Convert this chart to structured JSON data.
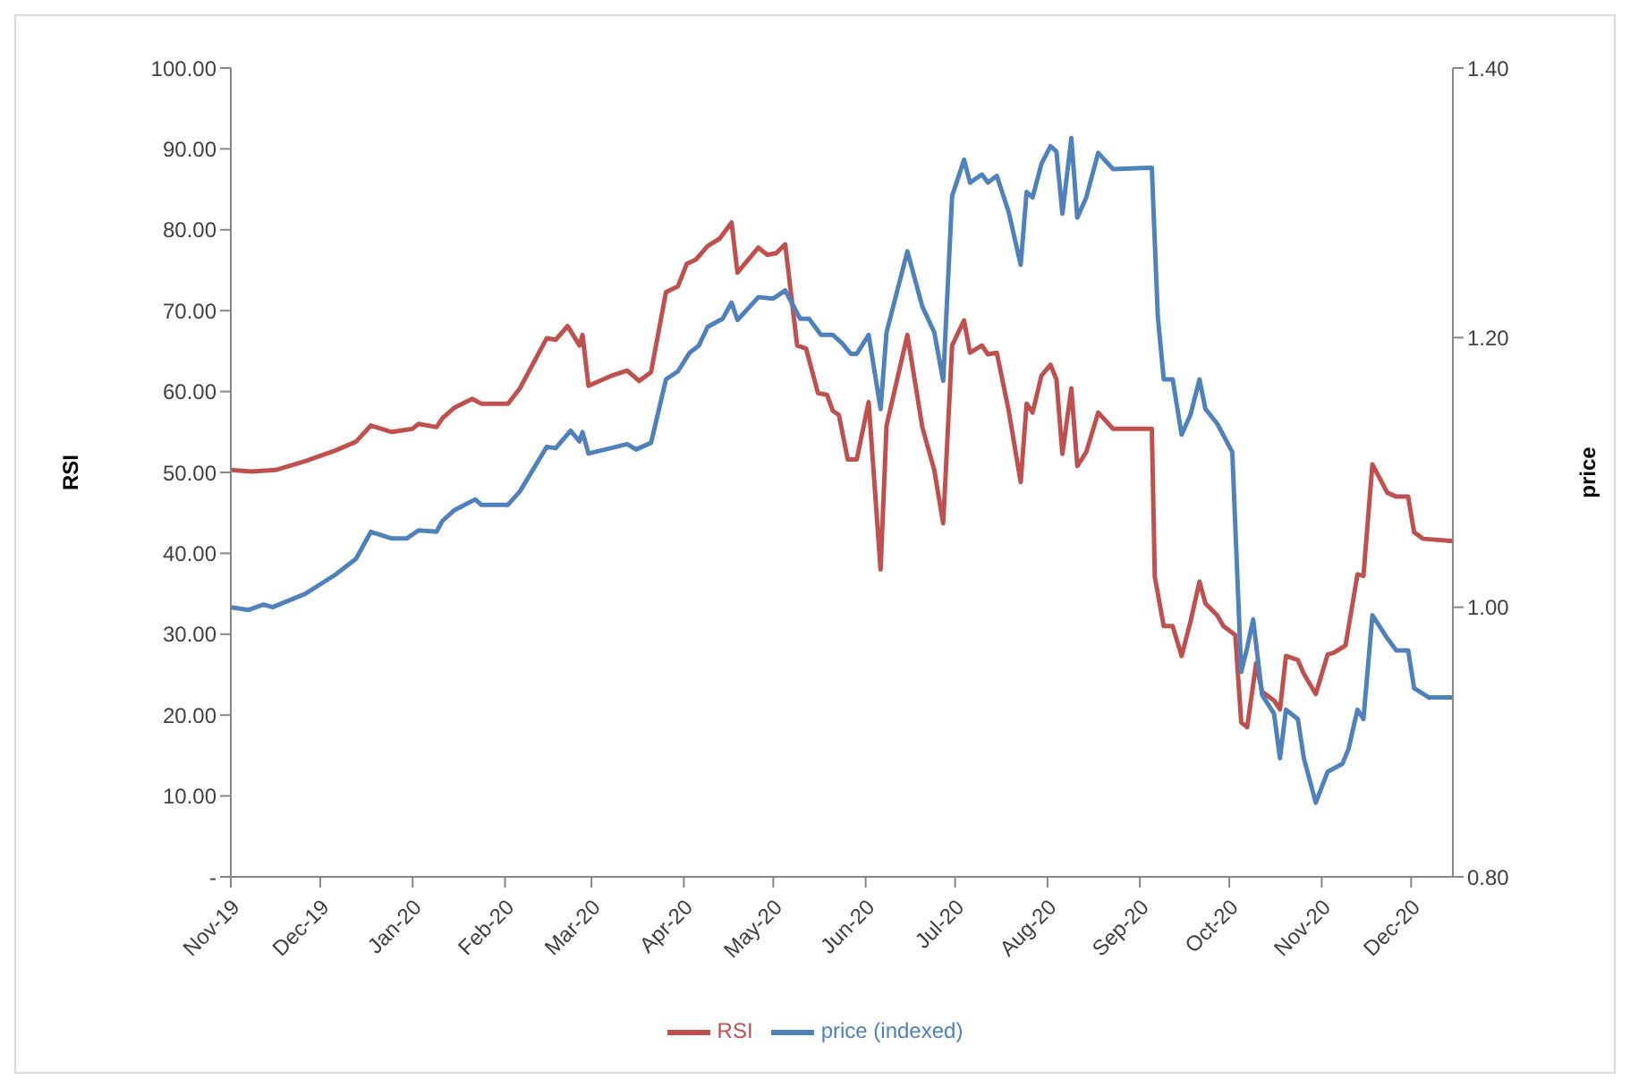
{
  "chart_data": {
    "type": "line",
    "ylabel": "RSI",
    "y2label": "price",
    "legend": "bottom",
    "marker": "none",
    "xlim": [
      "2019-11-01",
      "2020-12-15"
    ],
    "xticks": [
      {
        "value": "2019-11-01",
        "label": "Nov-19"
      },
      {
        "value": "2019-12-01",
        "label": "Dec-19"
      },
      {
        "value": "2020-01-01",
        "label": "Jan-20"
      },
      {
        "value": "2020-02-01",
        "label": "Feb-20"
      },
      {
        "value": "2020-03-01",
        "label": "Mar-20"
      },
      {
        "value": "2020-04-01",
        "label": "Apr-20"
      },
      {
        "value": "2020-05-01",
        "label": "May-20"
      },
      {
        "value": "2020-06-01",
        "label": "Jun-20"
      },
      {
        "value": "2020-07-01",
        "label": "Jul-20"
      },
      {
        "value": "2020-08-01",
        "label": "Aug-20"
      },
      {
        "value": "2020-09-01",
        "label": "Sep-20"
      },
      {
        "value": "2020-10-01",
        "label": "Oct-20"
      },
      {
        "value": "2020-11-01",
        "label": "Nov-20"
      },
      {
        "value": "2020-12-01",
        "label": "Dec-20"
      }
    ],
    "ylim": [
      0,
      100
    ],
    "yticks": [
      {
        "value": 0,
        "label": "-"
      },
      {
        "value": 10,
        "label": "10.00"
      },
      {
        "value": 20,
        "label": "20.00"
      },
      {
        "value": 30,
        "label": "30.00"
      },
      {
        "value": 40,
        "label": "40.00"
      },
      {
        "value": 50,
        "label": "50.00"
      },
      {
        "value": 60,
        "label": "60.00"
      },
      {
        "value": 70,
        "label": "70.00"
      },
      {
        "value": 80,
        "label": "80.00"
      },
      {
        "value": 90,
        "label": "90.00"
      },
      {
        "value": 100,
        "label": "100.00"
      }
    ],
    "y2lim": [
      0.8,
      1.4
    ],
    "y2ticks": [
      {
        "value": 0.8,
        "label": "0.80"
      },
      {
        "value": 1.0,
        "label": "1.00"
      },
      {
        "value": 1.2,
        "label": "1.20"
      },
      {
        "value": 1.4,
        "label": "1.40"
      }
    ],
    "series": [
      {
        "name": "RSI",
        "color": "#c0504d",
        "x": [
          "2019-11-01",
          "2019-11-08",
          "2019-11-16",
          "2019-11-26",
          "2019-12-06",
          "2019-12-13",
          "2019-12-18",
          "2019-12-25",
          "2020-01-01",
          "2020-01-03",
          "2020-01-09",
          "2020-01-11",
          "2020-01-15",
          "2020-01-21",
          "2020-01-24",
          "2020-02-02",
          "2020-02-06",
          "2020-02-15",
          "2020-02-18",
          "2020-02-22",
          "2020-02-26",
          "2020-02-27",
          "2020-02-29",
          "2020-03-08",
          "2020-03-13",
          "2020-03-17",
          "2020-03-21",
          "2020-03-26",
          "2020-03-30",
          "2020-04-02",
          "2020-04-05",
          "2020-04-09",
          "2020-04-13",
          "2020-04-17",
          "2020-04-19",
          "2020-04-26",
          "2020-04-29",
          "2020-05-02",
          "2020-05-05",
          "2020-05-09",
          "2020-05-12",
          "2020-05-16",
          "2020-05-19",
          "2020-05-21",
          "2020-05-23",
          "2020-05-26",
          "2020-05-29",
          "2020-06-02",
          "2020-06-06",
          "2020-06-08",
          "2020-06-15",
          "2020-06-20",
          "2020-06-24",
          "2020-06-27",
          "2020-06-30",
          "2020-07-04",
          "2020-07-06",
          "2020-07-10",
          "2020-07-12",
          "2020-07-15",
          "2020-07-19",
          "2020-07-23",
          "2020-07-25",
          "2020-07-27",
          "2020-07-30",
          "2020-08-02",
          "2020-08-04",
          "2020-08-06",
          "2020-08-09",
          "2020-08-11",
          "2020-08-14",
          "2020-08-18",
          "2020-08-23",
          "2020-09-05",
          "2020-09-06",
          "2020-09-09",
          "2020-09-12",
          "2020-09-15",
          "2020-09-18",
          "2020-09-21",
          "2020-09-23",
          "2020-09-27",
          "2020-09-29",
          "2020-10-03",
          "2020-10-05",
          "2020-10-07",
          "2020-10-10",
          "2020-10-12",
          "2020-10-16",
          "2020-10-18",
          "2020-10-20",
          "2020-10-24",
          "2020-10-26",
          "2020-10-30",
          "2020-11-03",
          "2020-11-05",
          "2020-11-09",
          "2020-11-13",
          "2020-11-15",
          "2020-11-18",
          "2020-11-23",
          "2020-11-26",
          "2020-11-30",
          "2020-12-02",
          "2020-12-05",
          "2020-12-15"
        ],
        "values": [
          50.3,
          50.1,
          50.3,
          51.4,
          52.7,
          53.8,
          55.8,
          55.0,
          55.4,
          56.0,
          55.6,
          56.7,
          58.0,
          59.1,
          58.5,
          58.5,
          60.4,
          66.6,
          66.4,
          68.1,
          65.7,
          67.0,
          60.7,
          62.0,
          62.6,
          61.3,
          62.4,
          72.3,
          73.0,
          75.8,
          76.3,
          78.0,
          78.9,
          80.9,
          74.7,
          77.8,
          76.9,
          77.1,
          78.2,
          65.7,
          65.3,
          59.8,
          59.6,
          57.6,
          57.1,
          51.6,
          51.6,
          58.7,
          38.0,
          55.8,
          67.0,
          55.6,
          50.3,
          43.7,
          65.7,
          68.8,
          64.8,
          65.7,
          64.6,
          64.8,
          57.6,
          48.8,
          58.5,
          57.4,
          62.0,
          63.3,
          61.5,
          52.3,
          60.4,
          50.8,
          52.5,
          57.4,
          55.4,
          55.4,
          37.1,
          31.0,
          31.0,
          27.3,
          31.6,
          36.5,
          33.8,
          32.3,
          31.0,
          29.9,
          19.1,
          18.5,
          26.4,
          22.9,
          21.8,
          20.7,
          27.3,
          26.8,
          25.1,
          22.6,
          27.5,
          27.7,
          28.6,
          37.4,
          37.2,
          51.0,
          47.5,
          47.0,
          47.0,
          42.6,
          41.8,
          41.5
        ]
      },
      {
        "name": "price (indexed)",
        "color": "#4f81bd",
        "axis": "y2",
        "x": [
          "2019-11-01",
          "2019-11-07",
          "2019-11-12",
          "2019-11-15",
          "2019-11-26",
          "2019-12-06",
          "2019-12-13",
          "2019-12-18",
          "2019-12-25",
          "2019-12-30",
          "2020-01-03",
          "2020-01-09",
          "2020-01-11",
          "2020-01-15",
          "2020-01-22",
          "2020-01-24",
          "2020-02-02",
          "2020-02-06",
          "2020-02-15",
          "2020-02-18",
          "2020-02-23",
          "2020-02-26",
          "2020-02-27",
          "2020-02-29",
          "2020-03-13",
          "2020-03-16",
          "2020-03-21",
          "2020-03-26",
          "2020-03-30",
          "2020-04-03",
          "2020-04-06",
          "2020-04-09",
          "2020-04-14",
          "2020-04-17",
          "2020-04-19",
          "2020-04-26",
          "2020-05-01",
          "2020-05-05",
          "2020-05-10",
          "2020-05-13",
          "2020-05-17",
          "2020-05-21",
          "2020-05-24",
          "2020-05-27",
          "2020-05-29",
          "2020-06-02",
          "2020-06-06",
          "2020-06-08",
          "2020-06-15",
          "2020-06-20",
          "2020-06-24",
          "2020-06-27",
          "2020-06-30",
          "2020-07-04",
          "2020-07-06",
          "2020-07-10",
          "2020-07-12",
          "2020-07-15",
          "2020-07-19",
          "2020-07-23",
          "2020-07-25",
          "2020-07-27",
          "2020-07-30",
          "2020-08-02",
          "2020-08-04",
          "2020-08-06",
          "2020-08-09",
          "2020-08-11",
          "2020-08-14",
          "2020-08-18",
          "2020-08-23",
          "2020-09-05",
          "2020-09-07",
          "2020-09-09",
          "2020-09-12",
          "2020-09-15",
          "2020-09-18",
          "2020-09-21",
          "2020-09-23",
          "2020-09-27",
          "2020-10-02",
          "2020-10-05",
          "2020-10-07",
          "2020-10-09",
          "2020-10-12",
          "2020-10-16",
          "2020-10-18",
          "2020-10-20",
          "2020-10-24",
          "2020-10-26",
          "2020-10-30",
          "2020-11-03",
          "2020-11-08",
          "2020-11-10",
          "2020-11-13",
          "2020-11-15",
          "2020-11-18",
          "2020-11-23",
          "2020-11-26",
          "2020-11-30",
          "2020-12-02",
          "2020-12-07",
          "2020-12-15"
        ],
        "values": [
          1.0,
          0.998,
          1.002,
          1.0,
          1.01,
          1.024,
          1.036,
          1.056,
          1.051,
          1.051,
          1.057,
          1.056,
          1.064,
          1.072,
          1.08,
          1.076,
          1.076,
          1.086,
          1.119,
          1.118,
          1.131,
          1.123,
          1.13,
          1.114,
          1.121,
          1.117,
          1.122,
          1.169,
          1.175,
          1.189,
          1.194,
          1.208,
          1.214,
          1.226,
          1.213,
          1.23,
          1.229,
          1.235,
          1.214,
          1.214,
          1.202,
          1.202,
          1.196,
          1.188,
          1.188,
          1.202,
          1.147,
          1.204,
          1.264,
          1.223,
          1.204,
          1.168,
          1.305,
          1.332,
          1.315,
          1.321,
          1.315,
          1.32,
          1.293,
          1.254,
          1.308,
          1.304,
          1.329,
          1.342,
          1.338,
          1.292,
          1.348,
          1.289,
          1.304,
          1.337,
          1.325,
          1.326,
          1.216,
          1.169,
          1.169,
          1.128,
          1.143,
          1.169,
          1.147,
          1.136,
          1.115,
          0.952,
          0.97,
          0.991,
          0.935,
          0.921,
          0.888,
          0.924,
          0.917,
          0.888,
          0.855,
          0.878,
          0.884,
          0.895,
          0.924,
          0.917,
          0.994,
          0.977,
          0.968,
          0.968,
          0.94,
          0.933,
          0.933
        ]
      }
    ]
  }
}
